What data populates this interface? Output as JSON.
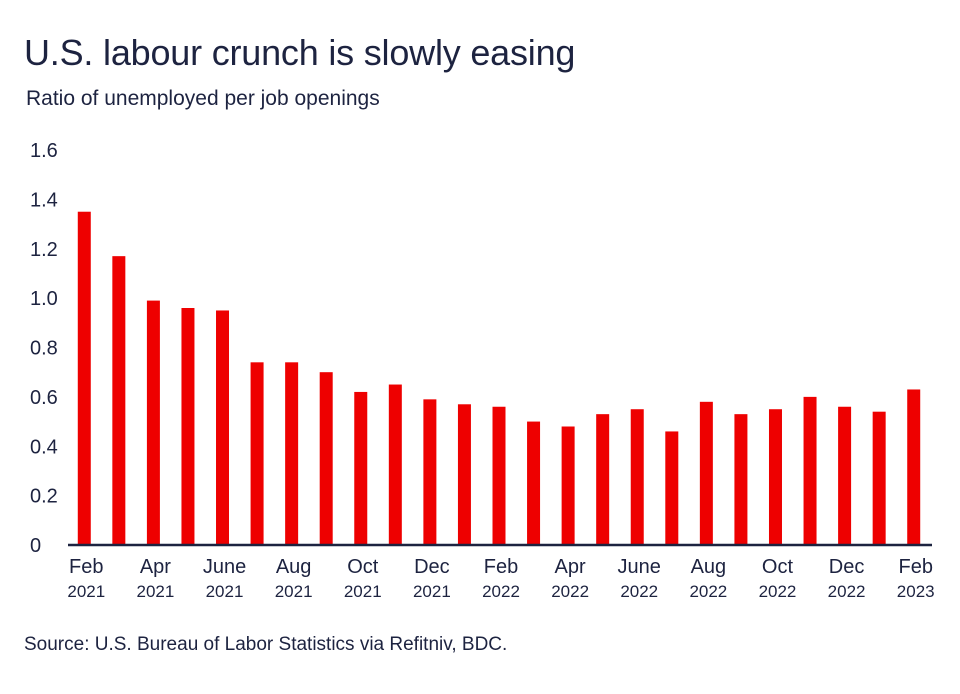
{
  "chart_data": {
    "type": "bar",
    "title": "U.S. labour crunch is slowly easing",
    "subtitle": "Ratio of unemployed per job openings",
    "source": "Source: U.S. Bureau of Labor Statistics via Refitniv, BDC.",
    "xlabel": "",
    "ylabel": "",
    "ylim": [
      0,
      1.6
    ],
    "yticks": [
      "0",
      "0.2",
      "0.4",
      "0.6",
      "0.8",
      "1.0",
      "1.2",
      "1.4",
      "1.6"
    ],
    "ytick_values": [
      0,
      0.2,
      0.4,
      0.6,
      0.8,
      1.0,
      1.2,
      1.4,
      1.6
    ],
    "categories": [
      "Feb 2021",
      "Mar 2021",
      "Apr 2021",
      "May 2021",
      "June 2021",
      "Jul 2021",
      "Aug 2021",
      "Sep 2021",
      "Oct 2021",
      "Nov 2021",
      "Dec 2021",
      "Jan 2022",
      "Feb 2022",
      "Mar 2022",
      "Apr 2022",
      "May 2022",
      "June 2022",
      "Jul 2022",
      "Aug 2022",
      "Sep 2022",
      "Oct 2022",
      "Nov 2022",
      "Dec 2022",
      "Jan 2023",
      "Feb 2023"
    ],
    "values": [
      1.35,
      1.17,
      0.99,
      0.96,
      0.95,
      0.74,
      0.74,
      0.7,
      0.62,
      0.65,
      0.59,
      0.57,
      0.56,
      0.5,
      0.48,
      0.53,
      0.55,
      0.46,
      0.58,
      0.53,
      0.55,
      0.6,
      0.56,
      0.54,
      0.63
    ],
    "x_tick_labels": [
      {
        "index": 0,
        "month": "Feb",
        "year": "2021"
      },
      {
        "index": 2,
        "month": "Apr",
        "year": "2021"
      },
      {
        "index": 4,
        "month": "June",
        "year": "2021"
      },
      {
        "index": 6,
        "month": "Aug",
        "year": "2021"
      },
      {
        "index": 8,
        "month": "Oct",
        "year": "2021"
      },
      {
        "index": 10,
        "month": "Dec",
        "year": "2021"
      },
      {
        "index": 12,
        "month": "Feb",
        "year": "2022"
      },
      {
        "index": 14,
        "month": "Apr",
        "year": "2022"
      },
      {
        "index": 16,
        "month": "June",
        "year": "2022"
      },
      {
        "index": 18,
        "month": "Aug",
        "year": "2022"
      },
      {
        "index": 20,
        "month": "Oct",
        "year": "2022"
      },
      {
        "index": 22,
        "month": "Dec",
        "year": "2022"
      },
      {
        "index": 24,
        "month": "Feb",
        "year": "2023"
      }
    ],
    "bar_color": "#ee0000",
    "axis_color": "#1d2340",
    "grid": false,
    "legend": "none"
  }
}
